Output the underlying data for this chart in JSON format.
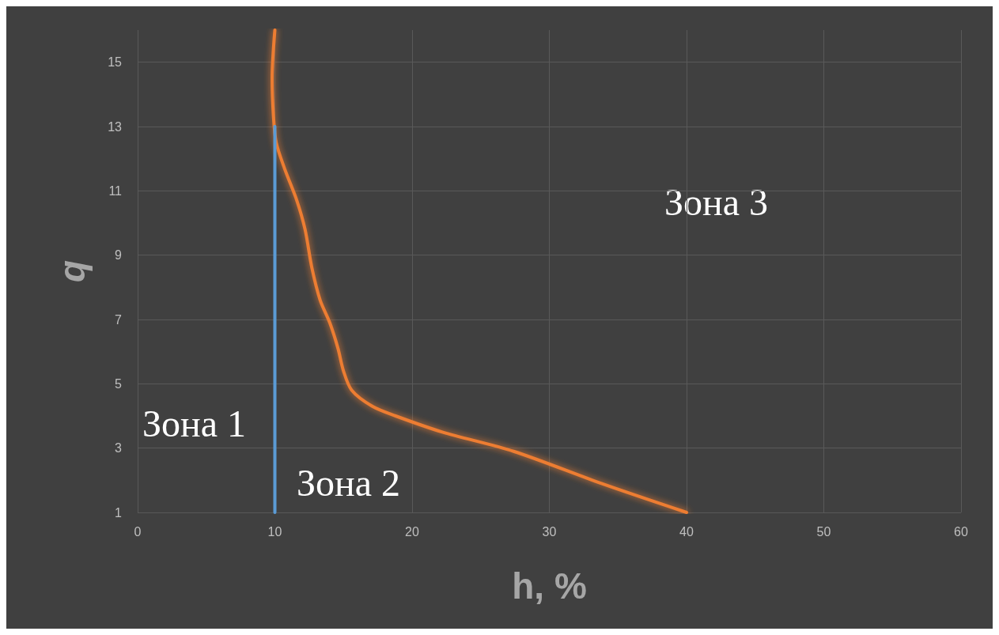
{
  "chart_data": {
    "type": "line",
    "xlabel": "h, %",
    "ylabel": "q",
    "xlim": [
      0,
      60
    ],
    "xticks": [
      0,
      10,
      20,
      30,
      40,
      50,
      60
    ],
    "ylim": [
      1,
      16
    ],
    "yticks": [
      1,
      3,
      5,
      7,
      9,
      11,
      13,
      15
    ],
    "grid": true,
    "marker": "none",
    "line_style": "solid",
    "series": [
      {
        "color": "#5b9bd5",
        "x": [
          10,
          10
        ],
        "values": [
          1,
          13
        ]
      },
      {
        "color": "#ed7d31",
        "x": [
          40,
          33.8,
          27.4,
          22.2,
          18.8,
          17.1,
          15.6,
          15,
          14.6,
          14,
          13.3,
          12.7,
          12.2,
          11.6,
          10.7,
          10.1,
          9.9,
          9.8,
          10
        ],
        "values": [
          1,
          1.9,
          2.9,
          3.5,
          4,
          4.3,
          4.8,
          5.4,
          6.1,
          6.9,
          7.6,
          8.6,
          9.8,
          10.7,
          11.7,
          12.5,
          13.3,
          14.5,
          16
        ]
      }
    ],
    "annotations": [
      "Зона 1",
      "Зона 2",
      "Зона 3"
    ]
  }
}
